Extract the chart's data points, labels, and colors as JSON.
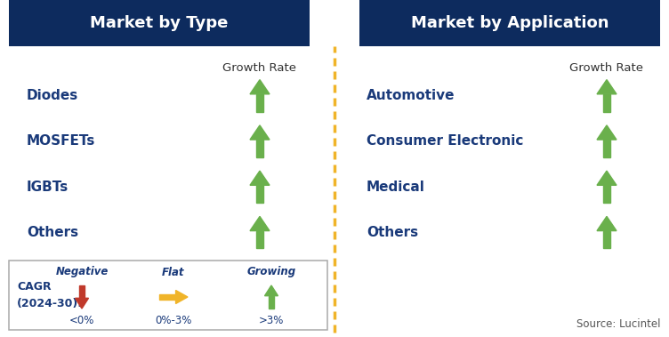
{
  "title_left": "Market by Type",
  "title_right": "Market by Application",
  "title_bg_color": "#0d2b5e",
  "title_text_color": "#ffffff",
  "left_items": [
    "Diodes",
    "MOSFETs",
    "IGBTs",
    "Others"
  ],
  "right_items": [
    "Automotive",
    "Consumer Electronic",
    "Medical",
    "Others"
  ],
  "item_text_color": "#1a3a7a",
  "growth_rate_label": "Growth Rate",
  "growth_rate_color": "#333333",
  "arrow_up_color": "#6ab04c",
  "divider_color": "#f0b429",
  "legend_title": "CAGR\n(2024-30):",
  "legend_title_color": "#1a3a7a",
  "legend_negative_label": "Negative",
  "legend_negative_value": "<0%",
  "legend_flat_label": "Flat",
  "legend_flat_range": "0%-3%",
  "legend_growing_label": "Growing",
  "legend_growing_value": ">3%",
  "legend_italic_color": "#1a3a7a",
  "arrow_down_color": "#c0392b",
  "arrow_flat_color": "#f0b429",
  "source_text": "Source: Lucintel",
  "source_color": "#555555",
  "bg_color": "#ffffff",
  "figsize": [
    7.52,
    3.79
  ],
  "dpi": 100
}
